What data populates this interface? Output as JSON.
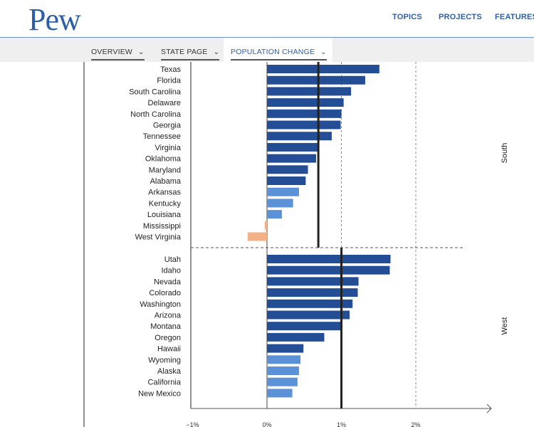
{
  "header": {
    "logo": "Pew",
    "nav": [
      "TOPICS",
      "PROJECTS",
      "FEATURES"
    ]
  },
  "subnav": {
    "tabs": [
      "OVERVIEW",
      "STATE PAGE",
      "POPULATION CHANGE"
    ],
    "active": "POPULATION CHANGE"
  },
  "colors": {
    "dark": "#234e96",
    "light": "#5b91d6",
    "negative": "#f4b185",
    "brand": "#2f5ea9"
  },
  "chart_data": {
    "type": "bar",
    "orientation": "horizontal",
    "xlim": [
      -1.0,
      2.9
    ],
    "xticks": [
      {
        "value": -1,
        "label": "−1%"
      },
      {
        "value": 0,
        "label": "0%"
      },
      {
        "value": 1,
        "label": "1%"
      },
      {
        "value": 2,
        "label": "2%"
      }
    ],
    "regions": [
      {
        "name": "South",
        "average": 0.69,
        "bars": [
          {
            "label": "Texas",
            "value": 1.51,
            "shade": "dark"
          },
          {
            "label": "Florida",
            "value": 1.32,
            "shade": "dark"
          },
          {
            "label": "South Carolina",
            "value": 1.13,
            "shade": "dark"
          },
          {
            "label": "Delaware",
            "value": 1.03,
            "shade": "dark"
          },
          {
            "label": "North Carolina",
            "value": 1.0,
            "shade": "dark"
          },
          {
            "label": "Georgia",
            "value": 0.99,
            "shade": "dark"
          },
          {
            "label": "Tennessee",
            "value": 0.87,
            "shade": "dark"
          },
          {
            "label": "Virginia",
            "value": 0.69,
            "shade": "dark"
          },
          {
            "label": "Oklahoma",
            "value": 0.66,
            "shade": "dark"
          },
          {
            "label": "Maryland",
            "value": 0.55,
            "shade": "dark"
          },
          {
            "label": "Alabama",
            "value": 0.52,
            "shade": "dark"
          },
          {
            "label": "Arkansas",
            "value": 0.43,
            "shade": "light"
          },
          {
            "label": "Kentucky",
            "value": 0.35,
            "shade": "light"
          },
          {
            "label": "Louisiana",
            "value": 0.2,
            "shade": "light"
          },
          {
            "label": "Mississippi",
            "value": -0.03,
            "shade": "negative"
          },
          {
            "label": "West Virginia",
            "value": -0.26,
            "shade": "negative"
          }
        ]
      },
      {
        "name": "West",
        "average": 1.0,
        "bars": [
          {
            "label": "Utah",
            "value": 1.66,
            "shade": "dark"
          },
          {
            "label": "Idaho",
            "value": 1.65,
            "shade": "dark"
          },
          {
            "label": "Nevada",
            "value": 1.23,
            "shade": "dark"
          },
          {
            "label": "Colorado",
            "value": 1.22,
            "shade": "dark"
          },
          {
            "label": "Washington",
            "value": 1.15,
            "shade": "dark"
          },
          {
            "label": "Arizona",
            "value": 1.11,
            "shade": "dark"
          },
          {
            "label": "Montana",
            "value": 1.0,
            "shade": "dark"
          },
          {
            "label": "Oregon",
            "value": 0.77,
            "shade": "dark"
          },
          {
            "label": "Hawaii",
            "value": 0.49,
            "shade": "dark"
          },
          {
            "label": "Wyoming",
            "value": 0.45,
            "shade": "light"
          },
          {
            "label": "Alaska",
            "value": 0.43,
            "shade": "light"
          },
          {
            "label": "California",
            "value": 0.41,
            "shade": "light"
          },
          {
            "label": "New Mexico",
            "value": 0.34,
            "shade": "light"
          }
        ]
      }
    ]
  }
}
